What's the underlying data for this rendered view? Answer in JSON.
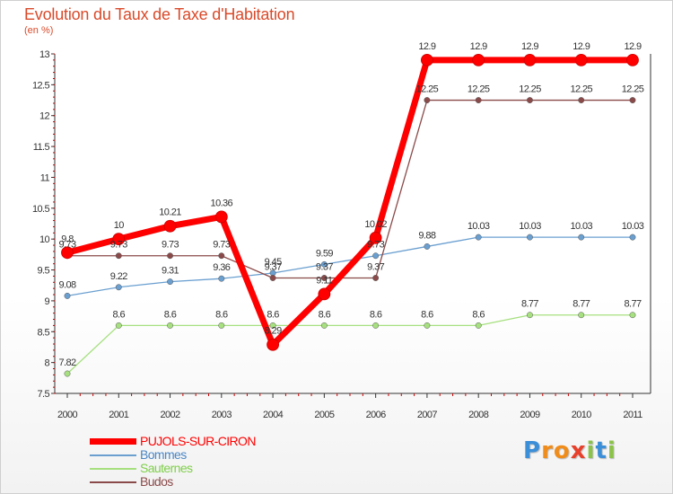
{
  "chart_data": {
    "type": "line",
    "title": "Evolution du Taux de Taxe d'Habitation",
    "subtitle": "(en %)",
    "categories": [
      "2000",
      "2001",
      "2002",
      "2003",
      "2004",
      "2005",
      "2006",
      "2007",
      "2008",
      "2009",
      "2010",
      "2011"
    ],
    "ylim": [
      7.5,
      13
    ],
    "yticks": [
      "7.5",
      "8",
      "8.5",
      "9",
      "9.5",
      "10",
      "10.5",
      "11",
      "11.5",
      "12",
      "12.5",
      "13"
    ],
    "grid": false,
    "legend_position": "bottom-left",
    "series": [
      {
        "name": "PUJOLS-SUR-CIRON",
        "color": "#ff0000",
        "values": [
          9.78,
          10,
          10.21,
          10.36,
          8.29,
          9.11,
          10.02,
          12.9,
          12.9,
          12.9,
          12.9,
          12.9
        ],
        "labels": [
          "9.8",
          "10",
          "10.21",
          "10.36",
          "8.29",
          "9.11",
          "10.02",
          "12.9",
          "12.9",
          "12.9",
          "12.9",
          "12.9"
        ]
      },
      {
        "name": "Bommes",
        "color": "#6a9fd0",
        "values": [
          9.08,
          9.22,
          9.31,
          9.36,
          9.45,
          9.59,
          9.73,
          9.88,
          10.03,
          10.03,
          10.03,
          10.03
        ],
        "labels": [
          "9.08",
          "9.22",
          "9.31",
          "9.36",
          "9.45",
          "9.59",
          "9.73",
          "9.88",
          "10.03",
          "10.03",
          "10.03",
          "10.03"
        ]
      },
      {
        "name": "Sauternes",
        "color": "#a6e07f",
        "values": [
          7.82,
          8.6,
          8.6,
          8.6,
          8.6,
          8.6,
          8.6,
          8.6,
          8.6,
          8.77,
          8.77,
          8.77
        ],
        "labels": [
          "7.82",
          "8.6",
          "8.6",
          "8.6",
          "8.6",
          "8.6",
          "8.6",
          "8.6",
          "8.6",
          "8.77",
          "8.77",
          "8.77"
        ]
      },
      {
        "name": "Budos",
        "color": "#8b4a4a",
        "values": [
          9.73,
          9.73,
          9.73,
          9.73,
          9.37,
          9.37,
          9.37,
          12.25,
          12.25,
          12.25,
          12.25,
          12.25
        ],
        "labels": [
          "9.73",
          "9.73",
          "9.73",
          "9.73",
          "9.37",
          "9.37",
          "9.37",
          "12.25",
          "12.25",
          "12.25",
          "12.25",
          "12.25"
        ]
      }
    ]
  },
  "legend": {
    "items": [
      {
        "label": "PUJOLS-SUR-CIRON",
        "color": "#ff0000"
      },
      {
        "label": "Bommes",
        "color": "#6a9fd0"
      },
      {
        "label": "Sauternes",
        "color": "#a6e07f"
      },
      {
        "label": "Budos",
        "color": "#8b4a4a"
      }
    ]
  },
  "brand": {
    "letters": [
      {
        "char": "P",
        "color": "#3b8ed8"
      },
      {
        "char": "r",
        "color": "#f08c1a"
      },
      {
        "char": "o",
        "color": "#f08c1a"
      },
      {
        "char": "x",
        "color": "#e8402a"
      },
      {
        "char": "i",
        "color": "#8bc34a"
      },
      {
        "char": "t",
        "color": "#3b8ed8"
      },
      {
        "char": "i",
        "color": "#8bc34a"
      }
    ]
  }
}
